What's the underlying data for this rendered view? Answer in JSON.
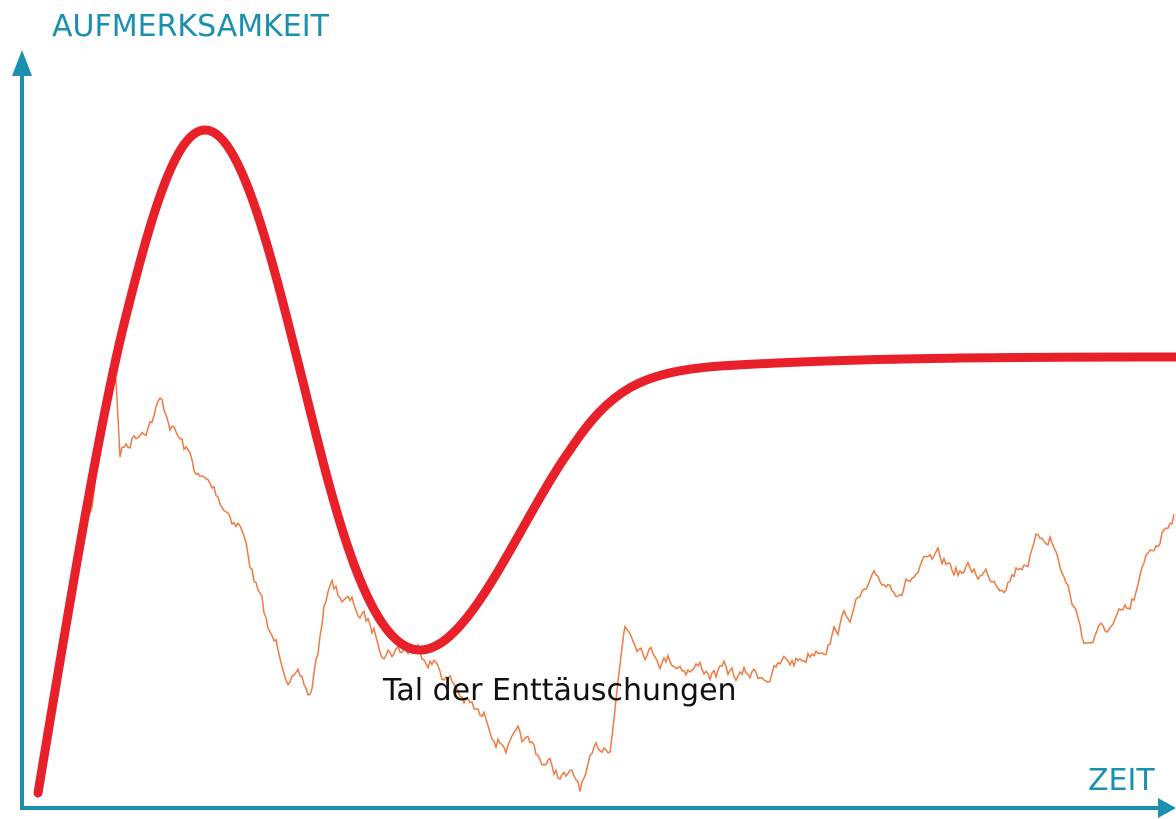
{
  "axes": {
    "y_label": "AUFMERKSAMKEIT",
    "x_label": "ZEIT"
  },
  "annotation": "Tal der Enttäuschungen"
}
